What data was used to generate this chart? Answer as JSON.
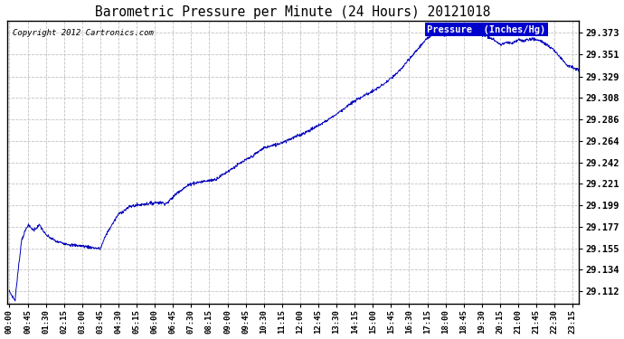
{
  "title": "Barometric Pressure per Minute (24 Hours) 20121018",
  "copyright": "Copyright 2012 Cartronics.com",
  "legend_label": "Pressure  (Inches/Hg)",
  "line_color": "#0000bb",
  "background_color": "#ffffff",
  "plot_background": "#ffffff",
  "grid_color": "#bbbbbb",
  "yticks": [
    29.112,
    29.134,
    29.155,
    29.177,
    29.199,
    29.221,
    29.242,
    29.264,
    29.286,
    29.308,
    29.329,
    29.351,
    29.373
  ],
  "ylim": [
    29.1,
    29.385
  ],
  "xtick_labels": [
    "00:00",
    "00:45",
    "01:30",
    "02:15",
    "03:00",
    "03:45",
    "04:30",
    "05:15",
    "06:00",
    "06:45",
    "07:30",
    "08:15",
    "09:00",
    "09:45",
    "10:30",
    "11:15",
    "12:00",
    "12:45",
    "13:30",
    "14:15",
    "15:00",
    "15:45",
    "16:30",
    "17:15",
    "18:00",
    "18:45",
    "19:30",
    "20:15",
    "21:00",
    "21:45",
    "22:30",
    "23:15"
  ],
  "legend_facecolor": "#0000cc",
  "legend_textcolor": "#ffffff"
}
